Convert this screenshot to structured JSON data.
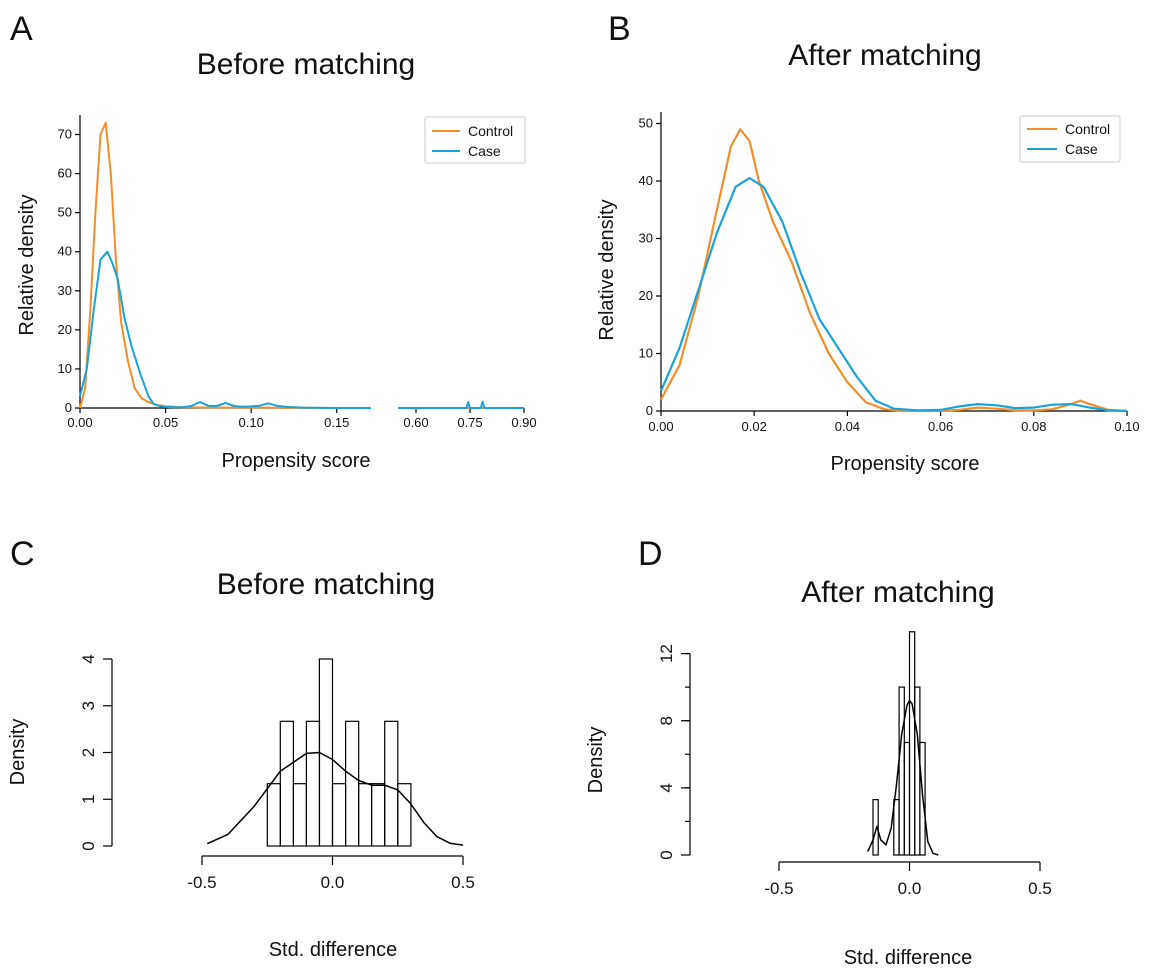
{
  "colors": {
    "control": "#f28e2b",
    "case": "#1ba3d9",
    "ink": "#000000"
  },
  "chart_data": [
    {
      "panel": "A",
      "type": "line",
      "title": "Before matching",
      "xlabel": "Propensity score",
      "ylabel": "Relative density",
      "ylim": [
        0,
        75
      ],
      "yticks": [
        "0",
        "10",
        "20",
        "30",
        "40",
        "50",
        "60",
        "70"
      ],
      "xticks_left": [
        "0.00",
        "0.05",
        "0.10",
        "0.15"
      ],
      "xticks_right": [
        "0.60",
        "0.75",
        "0.90"
      ],
      "xlim_left": [
        0,
        0.17
      ],
      "xlim_right": [
        0.55,
        0.9
      ],
      "legend": {
        "position": "top-right",
        "entries": [
          "Control",
          "Case"
        ]
      },
      "series": [
        {
          "name": "Control",
          "color_key": "control",
          "x": [
            0.0,
            0.003,
            0.006,
            0.009,
            0.012,
            0.015,
            0.018,
            0.021,
            0.024,
            0.028,
            0.032,
            0.036,
            0.04,
            0.045,
            0.05,
            0.055,
            0.06,
            0.08,
            0.1,
            0.12,
            0.15,
            0.17
          ],
          "y": [
            0,
            5,
            25,
            50,
            70,
            73,
            60,
            38,
            22,
            12,
            5,
            2.5,
            1.5,
            0.8,
            0.4,
            0.3,
            0.2,
            0.1,
            0.1,
            0.05,
            0,
            0
          ],
          "x_right": [
            0.55,
            0.9
          ],
          "y_right": [
            0,
            0
          ]
        },
        {
          "name": "Case",
          "color_key": "case",
          "x": [
            0.0,
            0.004,
            0.008,
            0.012,
            0.016,
            0.019,
            0.022,
            0.026,
            0.03,
            0.035,
            0.04,
            0.043,
            0.048,
            0.055,
            0.06,
            0.065,
            0.07,
            0.075,
            0.08,
            0.085,
            0.09,
            0.095,
            0.1,
            0.105,
            0.11,
            0.115,
            0.12,
            0.13,
            0.15,
            0.17
          ],
          "y": [
            3,
            10,
            25,
            38,
            40,
            37,
            33,
            23,
            16,
            9,
            3,
            1,
            0.3,
            0.2,
            0.2,
            0.5,
            1.5,
            0.6,
            0.5,
            1.3,
            0.5,
            0.3,
            0.4,
            0.6,
            1.2,
            0.6,
            0.3,
            0.1,
            0,
            0
          ],
          "x_right": [
            0.55,
            0.74,
            0.745,
            0.75,
            0.78,
            0.785,
            0.79,
            0.9
          ],
          "y_right": [
            0,
            0,
            1.5,
            0,
            0,
            1.6,
            0,
            0
          ]
        }
      ]
    },
    {
      "panel": "B",
      "type": "line",
      "title": "After matching",
      "xlabel": "Propensity score",
      "ylabel": "Relative density",
      "xlim": [
        0,
        0.1
      ],
      "ylim": [
        0,
        52
      ],
      "xticks": [
        "0.00",
        "0.02",
        "0.04",
        "0.06",
        "0.08",
        "0.10"
      ],
      "yticks": [
        "0",
        "10",
        "20",
        "30",
        "40",
        "50"
      ],
      "legend": {
        "position": "top-right",
        "entries": [
          "Control",
          "Case"
        ]
      },
      "series": [
        {
          "name": "Control",
          "color_key": "control",
          "x": [
            0.0,
            0.004,
            0.008,
            0.012,
            0.015,
            0.017,
            0.019,
            0.021,
            0.024,
            0.028,
            0.032,
            0.036,
            0.04,
            0.044,
            0.048,
            0.052,
            0.056,
            0.06,
            0.064,
            0.068,
            0.072,
            0.076,
            0.08,
            0.084,
            0.088,
            0.09,
            0.092,
            0.096,
            0.1
          ],
          "y": [
            2,
            8,
            20,
            35,
            46,
            49,
            47,
            40,
            33,
            26,
            17,
            10,
            5,
            1.5,
            0.3,
            0,
            0,
            0,
            0.2,
            0.6,
            0.4,
            0.1,
            0.1,
            0.3,
            1.2,
            1.8,
            1.2,
            0.2,
            0
          ],
          "x_right": [],
          "y_right": []
        },
        {
          "name": "Case",
          "color_key": "case",
          "x": [
            0.0,
            0.004,
            0.008,
            0.012,
            0.016,
            0.019,
            0.022,
            0.026,
            0.03,
            0.034,
            0.038,
            0.042,
            0.046,
            0.05,
            0.055,
            0.06,
            0.064,
            0.068,
            0.072,
            0.076,
            0.08,
            0.084,
            0.088,
            0.092,
            0.096,
            0.1
          ],
          "y": [
            3.5,
            11,
            21,
            31,
            39,
            40.5,
            39,
            33,
            24,
            16,
            11,
            6,
            1.8,
            0.4,
            0.1,
            0.2,
            0.8,
            1.2,
            1.0,
            0.5,
            0.6,
            1.1,
            1.2,
            0.6,
            0.1,
            0
          ],
          "x_right": [],
          "y_right": []
        }
      ]
    },
    {
      "panel": "C",
      "type": "histogram",
      "title": "Before matching",
      "xlabel": "Std. difference",
      "ylabel": "Density",
      "xlim": [
        -0.5,
        0.5
      ],
      "ylim": [
        0,
        4
      ],
      "xticks": [
        "-0.5",
        "0.0",
        "0.5"
      ],
      "yticks": [
        "0",
        "1",
        "2",
        "3",
        "4"
      ],
      "bins": {
        "edges": [
          -0.25,
          -0.2,
          -0.15,
          -0.1,
          -0.05,
          0.0,
          0.05,
          0.1,
          0.15,
          0.2,
          0.25,
          0.3
        ],
        "values": [
          1.333,
          2.667,
          1.333,
          2.667,
          4,
          1.333,
          2.667,
          1.333,
          1.333,
          2.667,
          1.333
        ]
      },
      "density_curve": {
        "x": [
          -0.48,
          -0.4,
          -0.3,
          -0.2,
          -0.1,
          -0.05,
          0.0,
          0.05,
          0.1,
          0.15,
          0.2,
          0.25,
          0.3,
          0.35,
          0.4,
          0.45,
          0.5
        ],
        "y": [
          0.05,
          0.25,
          0.85,
          1.6,
          1.98,
          2.0,
          1.85,
          1.6,
          1.4,
          1.3,
          1.3,
          1.2,
          0.9,
          0.5,
          0.2,
          0.06,
          0.02
        ]
      }
    },
    {
      "panel": "D",
      "type": "histogram",
      "title": "After matching",
      "xlabel": "Std. difference",
      "ylabel": "Density",
      "xlim": [
        -0.5,
        0.5
      ],
      "ylim": [
        0,
        14
      ],
      "xticks": [
        "-0.5",
        "0.0",
        "0.5"
      ],
      "yticks": [
        "0",
        "4",
        "8",
        "12"
      ],
      "bins": {
        "edges": [
          -0.14,
          -0.12,
          -0.1,
          -0.08,
          -0.06,
          -0.04,
          -0.02,
          0.0,
          0.02,
          0.04,
          0.06
        ],
        "values": [
          3.3,
          0,
          0,
          0,
          3.3,
          10,
          6.7,
          13.3,
          10,
          6.7
        ]
      },
      "density_curve": {
        "x": [
          -0.16,
          -0.14,
          -0.125,
          -0.11,
          -0.09,
          -0.07,
          -0.05,
          -0.03,
          -0.01,
          0.0,
          0.01,
          0.03,
          0.05,
          0.07,
          0.09,
          0.11
        ],
        "y": [
          0.2,
          0.9,
          1.7,
          0.9,
          0.6,
          1.6,
          4.2,
          7.2,
          8.9,
          9.2,
          9.0,
          7.2,
          3.6,
          0.8,
          0.1,
          0
        ]
      }
    }
  ]
}
